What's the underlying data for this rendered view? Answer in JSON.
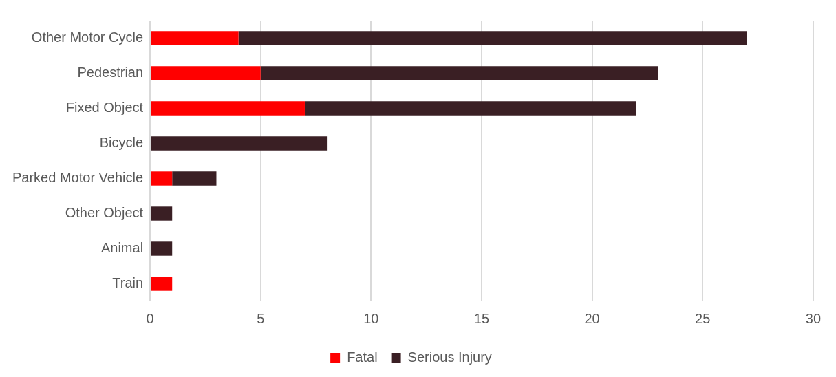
{
  "chart_data": {
    "type": "bar",
    "orientation": "horizontal",
    "stacked": true,
    "categories": [
      "Other Motor Cycle",
      "Pedestrian",
      "Fixed Object",
      "Bicycle",
      "Parked Motor Vehicle",
      "Other Object",
      "Animal",
      "Train"
    ],
    "series": [
      {
        "name": "Fatal",
        "color": "#ff0000",
        "values": [
          4,
          5,
          7,
          0,
          1,
          0,
          0,
          1
        ]
      },
      {
        "name": "Serious Injury",
        "color": "#3a1f24",
        "values": [
          23,
          18,
          15,
          8,
          2,
          1,
          1,
          0
        ]
      }
    ],
    "xlim": [
      0,
      30
    ],
    "xticks": [
      0,
      5,
      10,
      15,
      20,
      25,
      30
    ],
    "grid": "x",
    "legend": "bottom"
  }
}
